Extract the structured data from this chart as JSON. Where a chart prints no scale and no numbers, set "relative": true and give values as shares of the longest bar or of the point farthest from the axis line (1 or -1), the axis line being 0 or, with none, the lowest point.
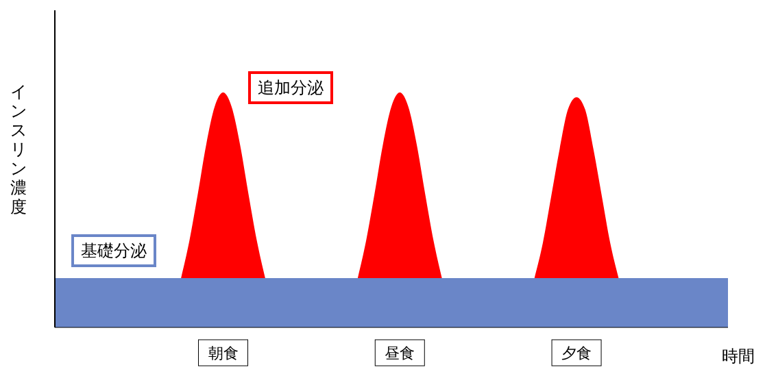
{
  "chart_data": {
    "type": "area",
    "relative": true,
    "xlabel": "時間",
    "ylabel": "インスリン濃度",
    "categories": [
      null,
      null,
      null,
      null,
      null,
      null,
      null,
      null,
      null,
      null,
      null,
      null,
      null,
      null,
      null,
      null,
      null,
      null,
      null,
      null,
      "朝食",
      null,
      null,
      null,
      null,
      null,
      null,
      null,
      null,
      null,
      null,
      null,
      null,
      null,
      null,
      null,
      null,
      null,
      null,
      null,
      null,
      "昼食",
      null,
      null,
      null,
      null,
      null,
      null,
      null,
      null,
      null,
      null,
      null,
      null,
      null,
      null,
      null,
      null,
      null,
      null,
      null,
      null,
      "夕食",
      null,
      null,
      null,
      null,
      null,
      null,
      null,
      null,
      null,
      null,
      null,
      null,
      null,
      null,
      null,
      null,
      null,
      null
    ],
    "bands": [
      {
        "axis": "y",
        "from": 0,
        "to": 0.21,
        "label": "基礎分泌",
        "color": "#6a86c8"
      }
    ],
    "series": [
      {
        "name": "追加分泌",
        "color": "#ff0000",
        "values": [
          null,
          null,
          null,
          null,
          null,
          null,
          null,
          null,
          null,
          null,
          null,
          null,
          null,
          null,
          null,
          0.21,
          0.37,
          0.57,
          0.78,
          0.94,
          1.0,
          0.94,
          0.78,
          0.57,
          0.37,
          0.21,
          null,
          null,
          null,
          null,
          null,
          null,
          null,
          null,
          null,
          null,
          0.21,
          0.37,
          0.57,
          0.78,
          0.94,
          1.0,
          0.94,
          0.78,
          0.57,
          0.37,
          0.21,
          null,
          null,
          null,
          null,
          null,
          null,
          null,
          null,
          null,
          null,
          0.21,
          0.36,
          0.56,
          0.76,
          0.93,
          0.98,
          0.93,
          0.76,
          0.56,
          0.36,
          0.21,
          null,
          null,
          null,
          null,
          null,
          null,
          null,
          null,
          null,
          null,
          null,
          null,
          null
        ]
      }
    ]
  }
}
